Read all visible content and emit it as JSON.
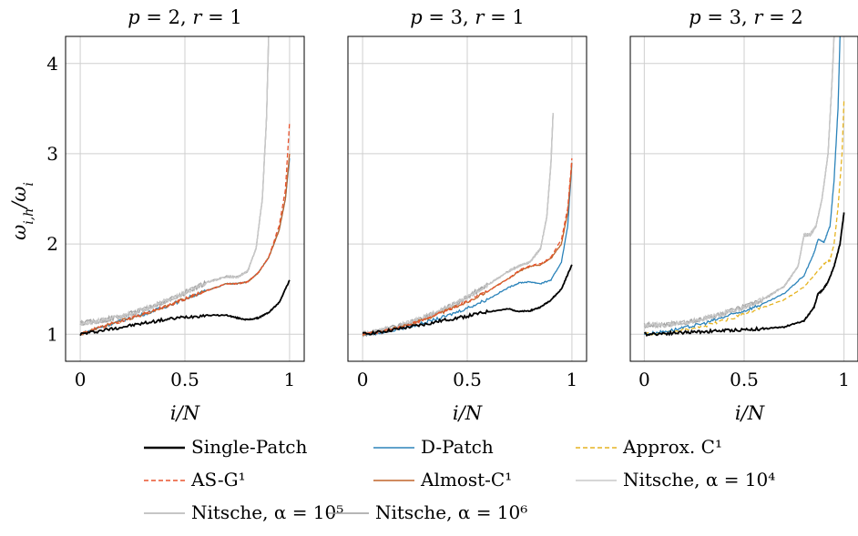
{
  "chart_data": [
    {
      "type": "line",
      "title": "p = 2, r = 1",
      "xlabel": "i/N",
      "ylabel": "ω_{i,h}/ω_i",
      "xlim": [
        -0.07,
        1.07
      ],
      "ylim": [
        0.7,
        4.3
      ],
      "xticks": [
        0,
        0.5,
        1
      ],
      "yticks": [
        1,
        2,
        3,
        4
      ],
      "grid": true,
      "series": [
        {
          "name": "Single-Patch",
          "color": "#000000",
          "x": [
            0,
            0.1,
            0.2,
            0.3,
            0.4,
            0.5,
            0.6,
            0.7,
            0.75,
            0.8,
            0.85,
            0.9,
            0.95,
            1.0
          ],
          "y": [
            1.0,
            1.04,
            1.08,
            1.12,
            1.16,
            1.19,
            1.21,
            1.21,
            1.18,
            1.16,
            1.18,
            1.24,
            1.35,
            1.6
          ]
        },
        {
          "name": "D-Patch",
          "color": "#2b83ba",
          "x": [
            0,
            0.1,
            0.2,
            0.3,
            0.4,
            0.5,
            0.6,
            0.7,
            0.75,
            0.8,
            0.85,
            0.9,
            0.95,
            0.98,
            1.0
          ],
          "y": [
            1.0,
            1.08,
            1.15,
            1.22,
            1.3,
            1.39,
            1.48,
            1.56,
            1.56,
            1.58,
            1.68,
            1.85,
            2.15,
            2.5,
            2.95
          ]
        },
        {
          "name": "Approx. C^1",
          "color": "#e6b422",
          "x": [],
          "y": []
        },
        {
          "name": "AS-G^1",
          "color": "#e8542e",
          "x": [
            0,
            0.1,
            0.2,
            0.3,
            0.4,
            0.5,
            0.6,
            0.7,
            0.75,
            0.8,
            0.85,
            0.9,
            0.95,
            0.98,
            1.0
          ],
          "y": [
            1.0,
            1.08,
            1.15,
            1.22,
            1.3,
            1.39,
            1.48,
            1.56,
            1.56,
            1.58,
            1.68,
            1.85,
            2.2,
            2.6,
            3.35
          ]
        },
        {
          "name": "Almost-C^1",
          "color": "#c0652a",
          "x": [
            0,
            0.1,
            0.2,
            0.3,
            0.4,
            0.5,
            0.6,
            0.7,
            0.75,
            0.8,
            0.85,
            0.9,
            0.95,
            0.98,
            1.0
          ],
          "y": [
            1.0,
            1.08,
            1.15,
            1.22,
            1.3,
            1.39,
            1.48,
            1.56,
            1.56,
            1.58,
            1.68,
            1.85,
            2.15,
            2.5,
            3.0
          ]
        },
        {
          "name": "Nitsche, α = 10^4",
          "color": "#c8c8c8",
          "x": [
            0,
            0.1,
            0.2,
            0.3,
            0.4,
            0.5,
            0.6,
            0.7,
            0.75,
            0.8,
            0.84,
            0.87,
            0.89,
            0.9
          ],
          "y": [
            1.12,
            1.15,
            1.2,
            1.27,
            1.36,
            1.46,
            1.57,
            1.64,
            1.63,
            1.7,
            1.95,
            2.5,
            3.4,
            4.3
          ]
        },
        {
          "name": "Nitsche, α = 10^5",
          "color": "#b4b4b4",
          "x": [
            0,
            0.1,
            0.2,
            0.3,
            0.4,
            0.5,
            0.6,
            0.7,
            0.75,
            0.8,
            0.84,
            0.87,
            0.89,
            0.9
          ],
          "y": [
            1.12,
            1.15,
            1.2,
            1.27,
            1.36,
            1.46,
            1.57,
            1.64,
            1.63,
            1.7,
            1.95,
            2.5,
            3.4,
            4.3
          ]
        },
        {
          "name": "Nitsche, α = 10^6",
          "color": "#9e9e9e",
          "x": [
            0,
            0.1,
            0.2,
            0.3,
            0.4,
            0.5,
            0.6,
            0.7,
            0.75,
            0.8,
            0.84,
            0.87,
            0.89,
            0.9
          ],
          "y": [
            1.12,
            1.15,
            1.2,
            1.27,
            1.36,
            1.46,
            1.57,
            1.64,
            1.63,
            1.7,
            1.95,
            2.5,
            3.4,
            4.3
          ]
        }
      ]
    },
    {
      "type": "line",
      "title": "p = 3, r = 1",
      "xlabel": "i/N",
      "xlim": [
        -0.07,
        1.07
      ],
      "ylim": [
        0.7,
        4.3
      ],
      "xticks": [
        0,
        0.5,
        1
      ],
      "yticks": [
        1,
        2,
        3,
        4
      ],
      "grid": true,
      "series": [
        {
          "name": "Single-Patch",
          "color": "#000000",
          "x": [
            0,
            0.1,
            0.2,
            0.3,
            0.4,
            0.5,
            0.6,
            0.7,
            0.75,
            0.8,
            0.85,
            0.9,
            0.95,
            1.0
          ],
          "y": [
            1.0,
            1.03,
            1.07,
            1.11,
            1.16,
            1.2,
            1.25,
            1.28,
            1.25,
            1.26,
            1.3,
            1.38,
            1.5,
            1.77
          ]
        },
        {
          "name": "D-Patch",
          "color": "#2b83ba",
          "x": [
            0,
            0.1,
            0.2,
            0.3,
            0.4,
            0.5,
            0.6,
            0.7,
            0.75,
            0.8,
            0.85,
            0.9,
            0.95,
            0.98,
            1.0
          ],
          "y": [
            1.0,
            1.02,
            1.07,
            1.13,
            1.2,
            1.29,
            1.39,
            1.52,
            1.57,
            1.58,
            1.56,
            1.6,
            1.8,
            2.2,
            2.9
          ]
        },
        {
          "name": "Approx. C^1",
          "color": "#e6b422",
          "x": [],
          "y": []
        },
        {
          "name": "AS-G^1",
          "color": "#e8542e",
          "x": [
            0,
            0.1,
            0.2,
            0.3,
            0.4,
            0.5,
            0.6,
            0.7,
            0.75,
            0.8,
            0.85,
            0.9,
            0.95,
            0.98,
            1.0
          ],
          "y": [
            1.0,
            1.03,
            1.09,
            1.17,
            1.26,
            1.36,
            1.48,
            1.62,
            1.71,
            1.76,
            1.78,
            1.85,
            2.05,
            2.4,
            2.95
          ]
        },
        {
          "name": "Almost-C^1",
          "color": "#c0652a",
          "x": [
            0,
            0.1,
            0.2,
            0.3,
            0.4,
            0.5,
            0.6,
            0.7,
            0.75,
            0.8,
            0.85,
            0.9,
            0.95,
            0.98,
            1.0
          ],
          "y": [
            1.0,
            1.03,
            1.09,
            1.17,
            1.26,
            1.36,
            1.48,
            1.62,
            1.7,
            1.75,
            1.77,
            1.84,
            2.0,
            2.35,
            2.9
          ]
        },
        {
          "name": "Nitsche, α = 10^4",
          "color": "#c8c8c8",
          "x": [
            0,
            0.1,
            0.2,
            0.3,
            0.4,
            0.5,
            0.6,
            0.7,
            0.75,
            0.8,
            0.85,
            0.88,
            0.9,
            0.91
          ],
          "y": [
            1.0,
            1.04,
            1.11,
            1.19,
            1.29,
            1.41,
            1.55,
            1.7,
            1.76,
            1.8,
            1.95,
            2.3,
            2.9,
            3.45
          ]
        },
        {
          "name": "Nitsche, α = 10^5",
          "color": "#b4b4b4",
          "x": [
            0,
            0.1,
            0.2,
            0.3,
            0.4,
            0.5,
            0.6,
            0.7,
            0.75,
            0.8,
            0.85,
            0.88,
            0.9,
            0.91
          ],
          "y": [
            1.0,
            1.04,
            1.11,
            1.19,
            1.29,
            1.41,
            1.55,
            1.7,
            1.76,
            1.8,
            1.95,
            2.3,
            2.9,
            3.45
          ]
        },
        {
          "name": "Nitsche, α = 10^6",
          "color": "#9e9e9e",
          "x": [
            0,
            0.1,
            0.2,
            0.3,
            0.4,
            0.5,
            0.6,
            0.7,
            0.75,
            0.8,
            0.85,
            0.88,
            0.9,
            0.91
          ],
          "y": [
            1.0,
            1.04,
            1.11,
            1.19,
            1.29,
            1.41,
            1.55,
            1.7,
            1.76,
            1.8,
            1.95,
            2.3,
            2.9,
            3.45
          ]
        }
      ]
    },
    {
      "type": "line",
      "title": "p = 3, r = 2",
      "xlabel": "i/N",
      "xlim": [
        -0.07,
        1.07
      ],
      "ylim": [
        0.7,
        4.3
      ],
      "xticks": [
        0,
        0.5,
        1
      ],
      "yticks": [
        1,
        2,
        3,
        4
      ],
      "grid": true,
      "series": [
        {
          "name": "Single-Patch",
          "color": "#000000",
          "x": [
            0,
            0.1,
            0.2,
            0.3,
            0.4,
            0.5,
            0.6,
            0.7,
            0.8,
            0.85,
            0.87,
            0.89,
            0.92,
            0.95,
            0.98,
            1.0
          ],
          "y": [
            1.0,
            1.01,
            1.02,
            1.03,
            1.04,
            1.05,
            1.06,
            1.08,
            1.15,
            1.3,
            1.45,
            1.48,
            1.58,
            1.75,
            2.0,
            2.35
          ]
        },
        {
          "name": "D-Patch",
          "color": "#2b83ba",
          "x": [
            0,
            0.1,
            0.2,
            0.3,
            0.4,
            0.5,
            0.6,
            0.7,
            0.8,
            0.85,
            0.87,
            0.9,
            0.93,
            0.95,
            0.97,
            0.98
          ],
          "y": [
            1.0,
            1.03,
            1.07,
            1.12,
            1.19,
            1.26,
            1.34,
            1.45,
            1.65,
            1.9,
            2.05,
            2.02,
            2.2,
            2.7,
            3.5,
            4.3
          ]
        },
        {
          "name": "Approx. C^1",
          "color": "#e6b422",
          "x": [
            0,
            0.1,
            0.2,
            0.3,
            0.4,
            0.5,
            0.6,
            0.7,
            0.8,
            0.85,
            0.9,
            0.93,
            0.95,
            0.97,
            0.99,
            1.0
          ],
          "y": [
            1.0,
            1.02,
            1.05,
            1.09,
            1.15,
            1.22,
            1.3,
            1.38,
            1.52,
            1.65,
            1.78,
            1.82,
            2.0,
            2.4,
            3.0,
            3.6
          ]
        },
        {
          "name": "AS-G^1",
          "color": "#e8542e",
          "x": [],
          "y": []
        },
        {
          "name": "Almost-C^1",
          "color": "#c0652a",
          "x": [],
          "y": []
        },
        {
          "name": "Nitsche, α = 10^4",
          "color": "#c8c8c8",
          "x": [
            0,
            0.1,
            0.2,
            0.3,
            0.4,
            0.5,
            0.6,
            0.7,
            0.77,
            0.8,
            0.83,
            0.86,
            0.89,
            0.92,
            0.94,
            0.95
          ],
          "y": [
            1.1,
            1.1,
            1.13,
            1.17,
            1.23,
            1.3,
            1.39,
            1.53,
            1.75,
            2.1,
            2.1,
            2.2,
            2.5,
            3.0,
            3.8,
            4.3
          ]
        },
        {
          "name": "Nitsche, α = 10^5",
          "color": "#b4b4b4",
          "x": [
            0,
            0.1,
            0.2,
            0.3,
            0.4,
            0.5,
            0.6,
            0.7,
            0.77,
            0.8,
            0.83,
            0.86,
            0.89,
            0.92,
            0.94,
            0.95
          ],
          "y": [
            1.1,
            1.1,
            1.13,
            1.17,
            1.23,
            1.3,
            1.39,
            1.53,
            1.75,
            2.1,
            2.1,
            2.2,
            2.5,
            3.0,
            3.8,
            4.3
          ]
        },
        {
          "name": "Nitsche, α = 10^6",
          "color": "#9e9e9e",
          "x": [
            0,
            0.1,
            0.2,
            0.3,
            0.4,
            0.5,
            0.6,
            0.7,
            0.77,
            0.8,
            0.83,
            0.86,
            0.89,
            0.92,
            0.94,
            0.95
          ],
          "y": [
            1.1,
            1.1,
            1.13,
            1.17,
            1.23,
            1.3,
            1.39,
            1.53,
            1.75,
            2.1,
            2.1,
            2.2,
            2.5,
            3.0,
            3.8,
            4.3
          ]
        }
      ]
    }
  ],
  "legend": {
    "placement": "bottom",
    "items": [
      {
        "label": "Single-Patch",
        "color": "#000000",
        "style": "solid"
      },
      {
        "label": "D-Patch",
        "color": "#2b83ba",
        "style": "solid"
      },
      {
        "label": "Approx. C¹",
        "color": "#e6b422",
        "style": "dashed"
      },
      {
        "label": "AS-G¹",
        "color": "#e8542e",
        "style": "dashed"
      },
      {
        "label": "Almost-C¹",
        "color": "#c0652a",
        "style": "solid"
      },
      {
        "label": "Nitsche, α = 10⁴",
        "color": "#c8c8c8",
        "style": "solid"
      },
      {
        "label": "Nitsche, α = 10⁵",
        "color": "#b4b4b4",
        "style": "solid"
      },
      {
        "label": "Nitsche, α = 10⁶",
        "color": "#9e9e9e",
        "style": "solid"
      }
    ]
  }
}
